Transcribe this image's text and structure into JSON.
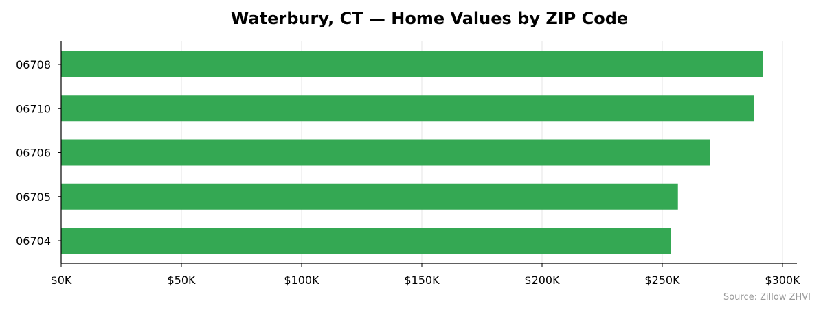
{
  "chart_data": {
    "type": "bar",
    "orientation": "horizontal",
    "title": "Waterbury, CT — Home Values by ZIP Code",
    "xlabel": "",
    "ylabel": "",
    "categories": [
      "06708",
      "06710",
      "06706",
      "06705",
      "06704"
    ],
    "values": [
      292000,
      288000,
      270000,
      256500,
      253500
    ],
    "xlim": [
      0,
      306000
    ],
    "x_ticks": [
      0,
      50000,
      100000,
      150000,
      200000,
      250000,
      300000
    ],
    "x_tick_labels": [
      "$0K",
      "$50K",
      "$100K",
      "$150K",
      "$200K",
      "$250K",
      "$300K"
    ],
    "grid": "vertical",
    "legend": "none",
    "bar_color": "#34a853",
    "source_note": "Source: Zillow ZHVI"
  }
}
